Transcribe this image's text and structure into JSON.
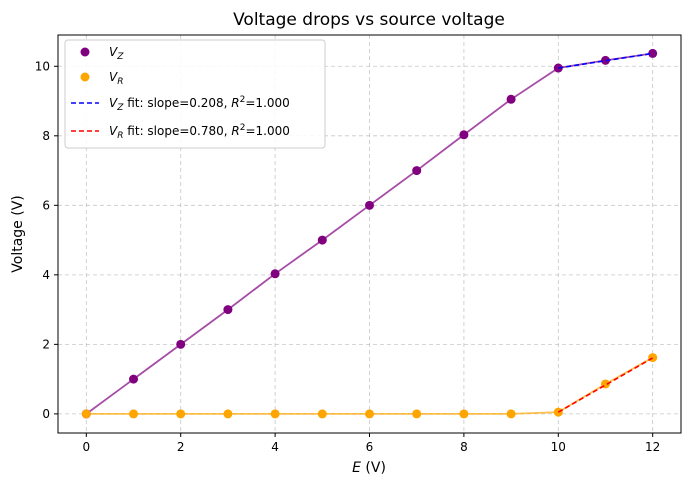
{
  "chart_data": {
    "type": "scatter",
    "title": "Voltage drops vs source voltage",
    "xlabel": "E (V)",
    "ylabel": "Voltage (V)",
    "xlim": [
      -0.6,
      12.6
    ],
    "ylim": [
      -0.55,
      10.9
    ],
    "xticks": [
      0,
      2,
      4,
      6,
      8,
      10,
      12
    ],
    "yticks": [
      0,
      2,
      4,
      6,
      8,
      10
    ],
    "grid": true,
    "legend_position": "top-left",
    "x": [
      0,
      1,
      2,
      3,
      4,
      5,
      6,
      7,
      8,
      9,
      10,
      11,
      12
    ],
    "series": [
      {
        "name": "V_Z",
        "kind": "scatter+line",
        "color": "#800080",
        "values": [
          0.0,
          1.0,
          2.0,
          3.0,
          4.03,
          5.0,
          6.0,
          7.0,
          8.03,
          9.05,
          9.95,
          10.17,
          10.37
        ]
      },
      {
        "name": "V_R",
        "kind": "scatter+line",
        "color": "#ffa500",
        "values": [
          0.0,
          0.0,
          0.0,
          0.0,
          0.0,
          0.0,
          0.0,
          0.0,
          0.0,
          0.0,
          0.05,
          0.86,
          1.62
        ]
      }
    ],
    "fits": [
      {
        "name": "V_Z fit: slope=0.208, R²=1.000",
        "color": "#0000ff",
        "style": "dashed",
        "x": [
          10,
          11,
          12
        ],
        "values": [
          9.95,
          10.16,
          10.37
        ]
      },
      {
        "name": "V_R fit: slope=0.780, R²=1.000",
        "color": "#ff0000",
        "style": "dashed",
        "x": [
          10,
          11,
          12
        ],
        "values": [
          0.05,
          0.83,
          1.61
        ]
      }
    ]
  },
  "legend": {
    "vz": {
      "sym": "V",
      "sub": "Z",
      "rest": ""
    },
    "vr": {
      "sym": "V",
      "sub": "R",
      "rest": ""
    },
    "vz_fit": {
      "sym": "V",
      "sub": "Z",
      "rest": " fit: slope=0.208, ",
      "r": "R",
      "sup": "2",
      "tail": "=1.000"
    },
    "vr_fit": {
      "sym": "V",
      "sub": "R",
      "rest": " fit: slope=0.780, ",
      "r": "R",
      "sup": "2",
      "tail": "=1.000"
    }
  },
  "xlabel_parts": {
    "sym": "E",
    "unit": " (V)"
  }
}
